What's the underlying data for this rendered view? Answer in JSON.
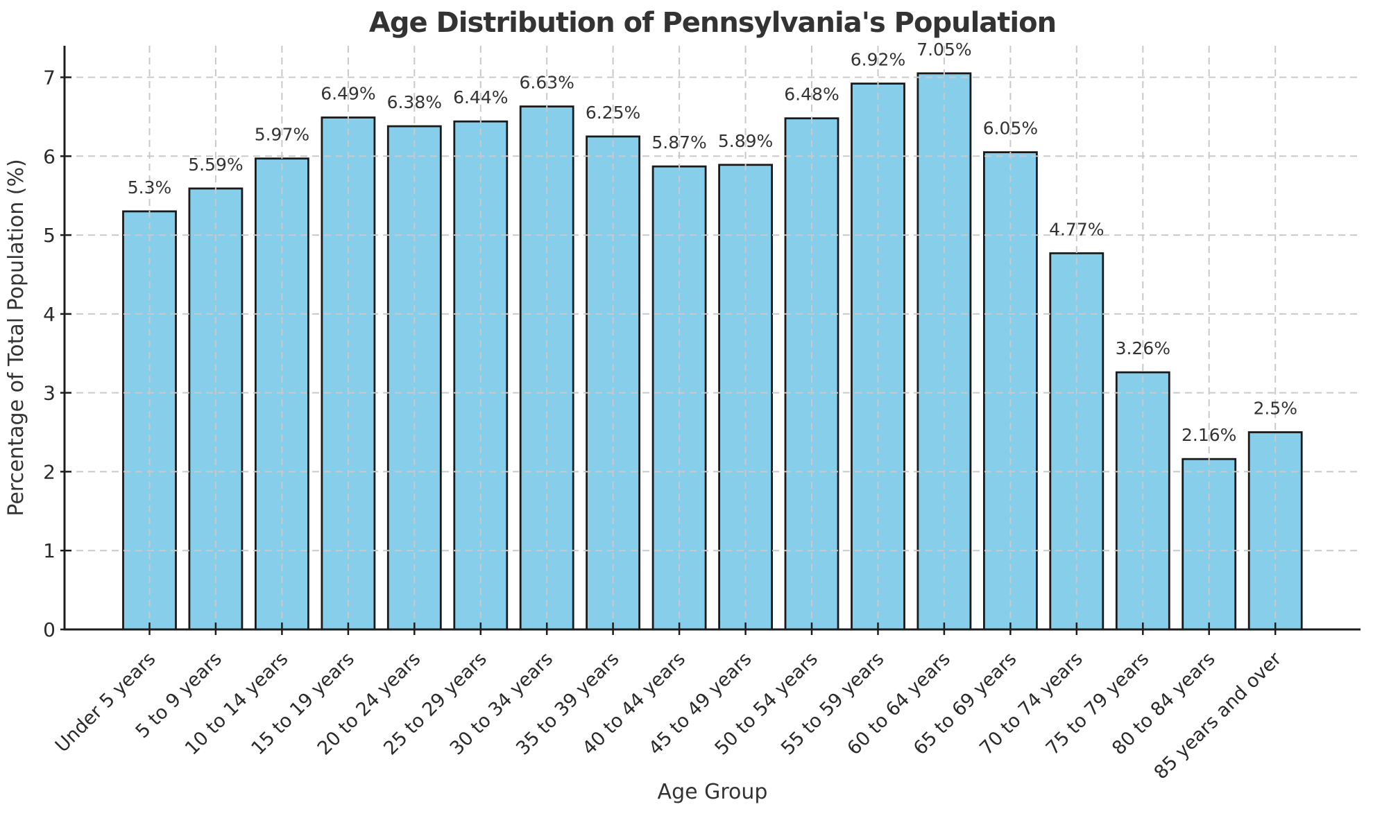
{
  "chart_data": {
    "type": "bar",
    "title": "Age Distribution of Pennsylvania's Population",
    "xlabel": "Age Group",
    "ylabel": "Percentage of Total Population (%)",
    "categories": [
      "Under 5 years",
      "5 to 9 years",
      "10 to 14 years",
      "15 to 19 years",
      "20 to 24 years",
      "25 to 29 years",
      "30 to 34 years",
      "35 to 39 years",
      "40 to 44 years",
      "45 to 49 years",
      "50 to 54 years",
      "55 to 59 years",
      "60 to 64 years",
      "65 to 69 years",
      "70 to 74 years",
      "75 to 79 years",
      "80 to 84 years",
      "85 years and over"
    ],
    "values": [
      5.3,
      5.59,
      5.97,
      6.49,
      6.38,
      6.44,
      6.63,
      6.25,
      5.87,
      5.89,
      6.48,
      6.92,
      7.05,
      6.05,
      4.77,
      3.26,
      2.16,
      2.5
    ],
    "bar_labels": [
      "5.3%",
      "5.59%",
      "5.97%",
      "6.49%",
      "6.38%",
      "6.44%",
      "6.63%",
      "6.25%",
      "5.87%",
      "5.89%",
      "6.48%",
      "6.92%",
      "7.05%",
      "6.05%",
      "4.77%",
      "3.26%",
      "2.16%",
      "2.5%"
    ],
    "yticks": [
      0,
      1,
      2,
      3,
      4,
      5,
      6,
      7
    ],
    "ylim": [
      0,
      7.4
    ],
    "grid": {
      "visible": true,
      "style": "dashed",
      "axis": "both",
      "above_bars": true
    },
    "legend": "none",
    "colors": {
      "bar_fill": "#87CEEB",
      "bar_edge": "#1a1a1a",
      "grid": "#c9c9c9",
      "spine": "#1d1d1d",
      "text": "#333333",
      "background": "#ffffff"
    }
  }
}
